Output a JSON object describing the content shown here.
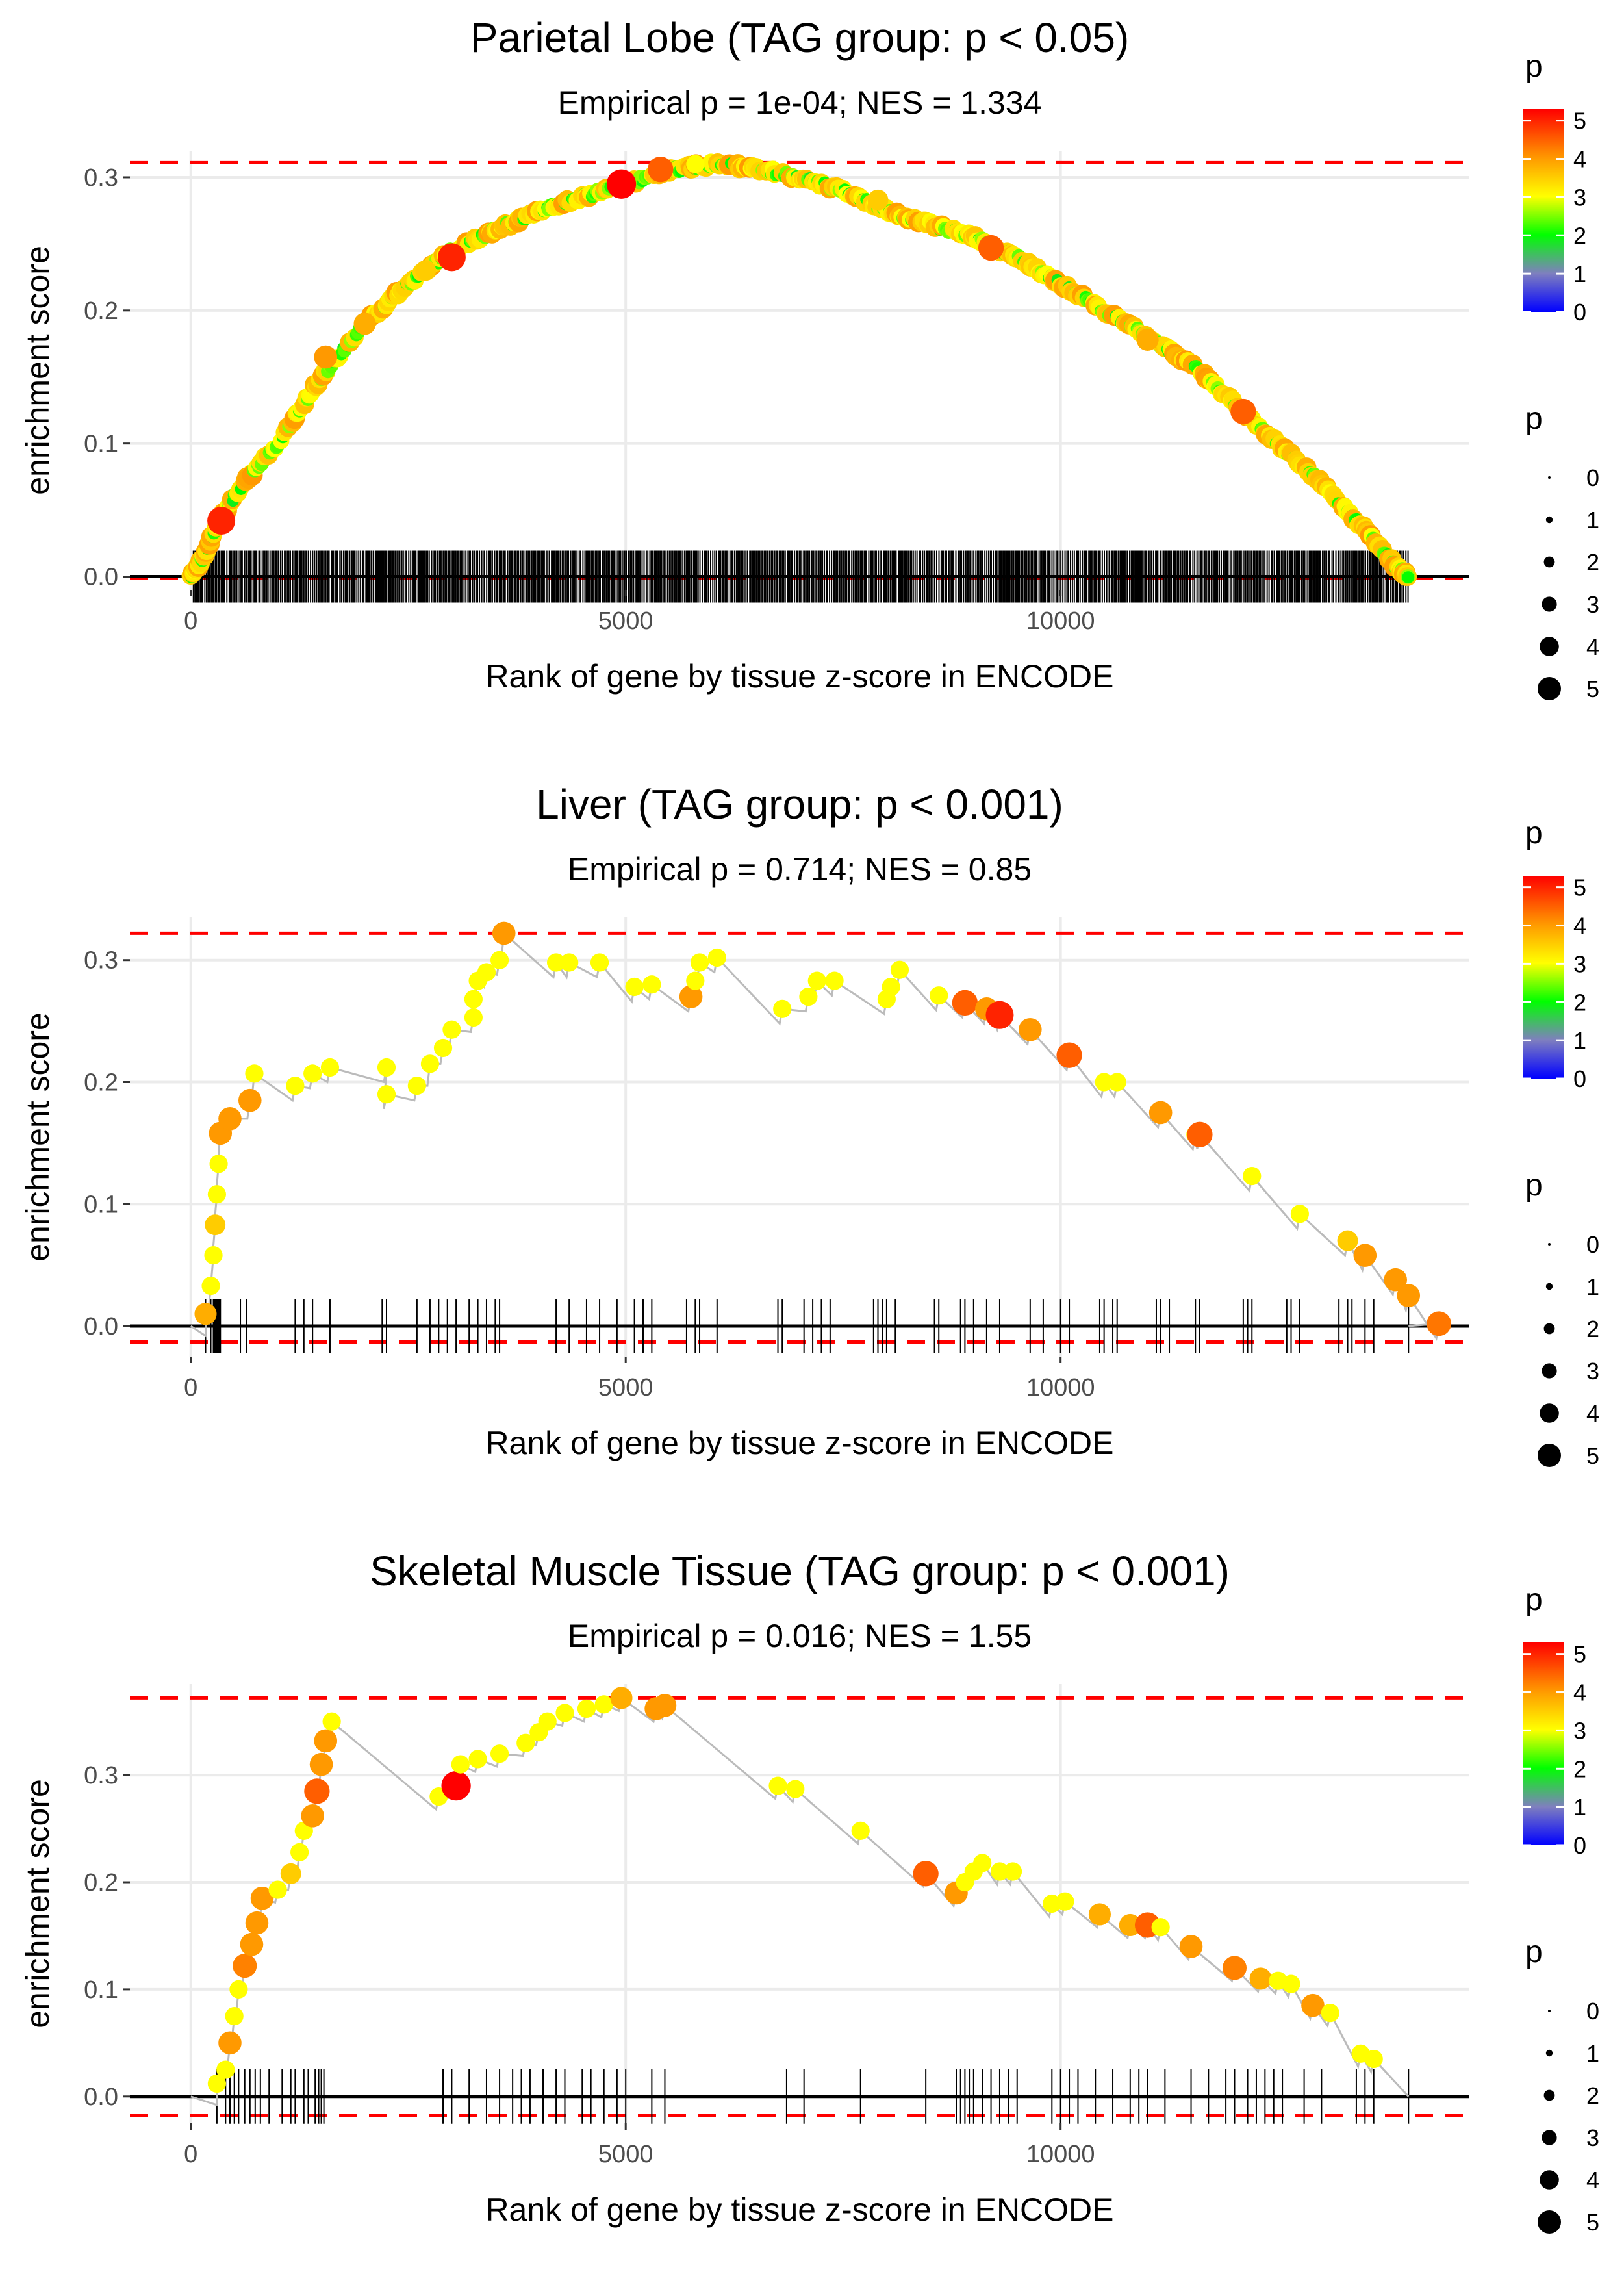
{
  "xlabel": "Rank of gene by tissue z-score in ENCODE",
  "ylabel": "enrichment score",
  "legend": {
    "color_title": "p",
    "size_title": "p",
    "color_ticks": [
      "5",
      "4",
      "3",
      "2",
      "1",
      "0"
    ],
    "size_ticks": [
      "0",
      "1",
      "2",
      "3",
      "4",
      "5"
    ],
    "color_scale": [
      "#0000ff",
      "#7f7fbf",
      "#00ff00",
      "#ffff00",
      "#ff9900",
      "#ff0000"
    ]
  },
  "colors": {
    "dashed": "#ff0000",
    "line": "#bbbbbb",
    "grid": "#ebebeb",
    "ticks": "#000000"
  },
  "chart_data": [
    {
      "type": "line",
      "title": "Parietal Lobe (TAG group: p < 0.05)",
      "subtitle": "Empirical p = 1e-04; NES = 1.334",
      "xlim": [
        -700,
        14700
      ],
      "ylim": [
        -0.01,
        0.32
      ],
      "xticks": [
        "0",
        "5000",
        "10000"
      ],
      "yticks": [
        "0.0",
        "0.1",
        "0.2",
        "0.3"
      ],
      "xtick_values": [
        0,
        5000,
        10000
      ],
      "ytick_values": [
        0,
        0.1,
        0.2,
        0.3
      ],
      "es_max": 0.311,
      "es_min": -0.001,
      "mode": "dense",
      "curve": [
        [
          0,
          0
        ],
        [
          150,
          0.015
        ],
        [
          300,
          0.04
        ],
        [
          600,
          0.07
        ],
        [
          1000,
          0.1
        ],
        [
          1500,
          0.15
        ],
        [
          2000,
          0.19
        ],
        [
          2500,
          0.22
        ],
        [
          3000,
          0.245
        ],
        [
          3500,
          0.26
        ],
        [
          4000,
          0.275
        ],
        [
          4500,
          0.285
        ],
        [
          5000,
          0.295
        ],
        [
          5500,
          0.305
        ],
        [
          6000,
          0.31
        ],
        [
          6500,
          0.307
        ],
        [
          7000,
          0.3
        ],
        [
          7500,
          0.29
        ],
        [
          8000,
          0.275
        ],
        [
          8500,
          0.265
        ],
        [
          9000,
          0.255
        ],
        [
          9500,
          0.24
        ],
        [
          10000,
          0.22
        ],
        [
          10500,
          0.2
        ],
        [
          11000,
          0.18
        ],
        [
          11500,
          0.16
        ],
        [
          12000,
          0.13
        ],
        [
          12500,
          0.1
        ],
        [
          13000,
          0.07
        ],
        [
          13500,
          0.035
        ],
        [
          13900,
          0.005
        ],
        [
          14000,
          0
        ]
      ],
      "highlights": [
        [
          350,
          0.042,
          5
        ],
        [
          1550,
          0.165,
          4
        ],
        [
          3000,
          0.24,
          5
        ],
        [
          4950,
          0.295,
          5.3
        ],
        [
          5400,
          0.306,
          4.5
        ],
        [
          9200,
          0.247,
          4.5
        ],
        [
          12100,
          0.124,
          4.5
        ],
        [
          5800,
          0.31,
          3
        ],
        [
          2700,
          0.23,
          3.5
        ],
        [
          7900,
          0.283,
          3.5
        ],
        [
          11000,
          0.178,
          3.8
        ],
        [
          2000,
          0.19,
          3.8
        ]
      ],
      "hits_dense": true,
      "hits": [],
      "points": []
    },
    {
      "type": "line",
      "title": "Liver (TAG group: p < 0.001)",
      "subtitle": "Empirical p = 0.714; NES = 0.85",
      "xlim": [
        -700,
        14700
      ],
      "ylim": [
        -0.025,
        0.335
      ],
      "xticks": [
        "0",
        "5000",
        "10000"
      ],
      "yticks": [
        "0.0",
        "0.1",
        "0.2",
        "0.3"
      ],
      "xtick_values": [
        0,
        5000,
        10000
      ],
      "ytick_values": [
        0,
        0.1,
        0.2,
        0.3
      ],
      "es_max": 0.322,
      "es_min": -0.013,
      "mode": "sparse",
      "hits_dense": false,
      "hits": [
        170,
        230,
        260,
        270,
        280,
        290,
        300,
        310,
        320,
        330,
        340,
        570,
        640,
        1200,
        1300,
        1400,
        1600,
        2200,
        2250,
        2600,
        2750,
        2850,
        2950,
        3050,
        3200,
        3300,
        3400,
        3500,
        3550,
        4200,
        4350,
        4550,
        4700,
        4900,
        5100,
        5200,
        5300,
        5700,
        5800,
        5850,
        6050,
        6750,
        6800,
        7050,
        7150,
        7250,
        7350,
        7850,
        7900,
        7950,
        8000,
        8100,
        8550,
        8600,
        8850,
        8900,
        9000,
        9150,
        9300,
        9650,
        9800,
        10000,
        10100,
        10450,
        10500,
        10600,
        10650,
        11100,
        11150,
        11250,
        11550,
        11600,
        12100,
        12150,
        12200,
        12600,
        12650,
        12750,
        13200,
        13300,
        13350,
        13500,
        13600,
        14000
      ],
      "points": [
        [
          170,
          0.01,
          3.8
        ],
        [
          230,
          0.033,
          3
        ],
        [
          260,
          0.058,
          3
        ],
        [
          280,
          0.083,
          3.5
        ],
        [
          300,
          0.108,
          3
        ],
        [
          320,
          0.133,
          3
        ],
        [
          340,
          0.158,
          4
        ],
        [
          450,
          0.17,
          4
        ],
        [
          680,
          0.185,
          4
        ],
        [
          730,
          0.207,
          3
        ],
        [
          1200,
          0.197,
          3
        ],
        [
          1400,
          0.207,
          3
        ],
        [
          1600,
          0.212,
          3
        ],
        [
          2250,
          0.212,
          3
        ],
        [
          2250,
          0.19,
          3
        ],
        [
          2600,
          0.197,
          3
        ],
        [
          2750,
          0.215,
          3
        ],
        [
          2900,
          0.228,
          3
        ],
        [
          3000,
          0.243,
          3
        ],
        [
          3250,
          0.253,
          3
        ],
        [
          3250,
          0.268,
          3
        ],
        [
          3300,
          0.283,
          3
        ],
        [
          3400,
          0.29,
          3
        ],
        [
          3550,
          0.3,
          3
        ],
        [
          3600,
          0.322,
          4
        ],
        [
          4200,
          0.298,
          3
        ],
        [
          4350,
          0.298,
          3
        ],
        [
          4700,
          0.298,
          3
        ],
        [
          5100,
          0.278,
          3
        ],
        [
          5300,
          0.28,
          3
        ],
        [
          5750,
          0.27,
          4
        ],
        [
          5800,
          0.283,
          3
        ],
        [
          5850,
          0.298,
          3
        ],
        [
          6050,
          0.302,
          3
        ],
        [
          6800,
          0.26,
          3
        ],
        [
          7100,
          0.27,
          3
        ],
        [
          7200,
          0.283,
          3
        ],
        [
          7400,
          0.283,
          3
        ],
        [
          8000,
          0.268,
          3
        ],
        [
          8050,
          0.278,
          3
        ],
        [
          8150,
          0.292,
          3
        ],
        [
          8600,
          0.271,
          3
        ],
        [
          8900,
          0.265,
          4.5
        ],
        [
          9150,
          0.26,
          4
        ],
        [
          9300,
          0.255,
          5
        ],
        [
          9650,
          0.243,
          4
        ],
        [
          10100,
          0.222,
          4.5
        ],
        [
          10500,
          0.2,
          3
        ],
        [
          10650,
          0.2,
          3
        ],
        [
          11150,
          0.175,
          4
        ],
        [
          11550,
          0.157,
          3
        ],
        [
          11600,
          0.157,
          4.5
        ],
        [
          12200,
          0.123,
          3
        ],
        [
          12750,
          0.092,
          3
        ],
        [
          13300,
          0.07,
          3.5
        ],
        [
          13500,
          0.058,
          4
        ],
        [
          13850,
          0.038,
          4
        ],
        [
          14000,
          0.025,
          4
        ],
        [
          14350,
          0.002,
          4.3
        ]
      ],
      "curve": [
        [
          0,
          0
        ],
        [
          170,
          -0.008
        ]
      ]
    },
    {
      "type": "line",
      "title": "Skeletal Muscle Tissue (TAG group: p < 0.001)",
      "subtitle": "Empirical p = 0.016; NES = 1.55",
      "xlim": [
        -700,
        14700
      ],
      "ylim": [
        -0.025,
        0.385
      ],
      "xticks": [
        "0",
        "5000",
        "10000"
      ],
      "yticks": [
        "0.0",
        "0.1",
        "0.2",
        "0.3"
      ],
      "xtick_values": [
        0,
        5000,
        10000
      ],
      "ytick_values": [
        0,
        0.1,
        0.2,
        0.3
      ],
      "es_max": 0.372,
      "es_min": -0.018,
      "mode": "sparse",
      "hits_dense": false,
      "hits": [
        300,
        400,
        450,
        500,
        550,
        620,
        680,
        740,
        800,
        900,
        1050,
        1150,
        1200,
        1300,
        1350,
        1430,
        1470,
        1500,
        1530,
        2900,
        3000,
        3200,
        3400,
        3550,
        3700,
        3800,
        3900,
        4050,
        4200,
        4300,
        4500,
        4600,
        4750,
        4900,
        5000,
        5300,
        5450,
        6850,
        7050,
        7700,
        8450,
        8800,
        8850,
        8900,
        8950,
        9000,
        9100,
        9200,
        9300,
        9400,
        9500,
        9900,
        10000,
        10100,
        10200,
        10400,
        10600,
        10800,
        10900,
        11000,
        11200,
        11500,
        11700,
        11900,
        12000,
        12150,
        12250,
        12350,
        12450,
        12550,
        12800,
        13000,
        13400,
        13500,
        13600,
        14000
      ],
      "points": [
        [
          300,
          0.012,
          3
        ],
        [
          400,
          0.025,
          3
        ],
        [
          450,
          0.05,
          4
        ],
        [
          500,
          0.075,
          3
        ],
        [
          550,
          0.1,
          3
        ],
        [
          620,
          0.122,
          4.2
        ],
        [
          700,
          0.142,
          4
        ],
        [
          760,
          0.162,
          4
        ],
        [
          820,
          0.185,
          4
        ],
        [
          1000,
          0.193,
          3
        ],
        [
          1150,
          0.208,
          3.5
        ],
        [
          1250,
          0.228,
          3
        ],
        [
          1300,
          0.248,
          3
        ],
        [
          1400,
          0.262,
          4
        ],
        [
          1450,
          0.285,
          4.5
        ],
        [
          1500,
          0.31,
          4
        ],
        [
          1550,
          0.332,
          4
        ],
        [
          1620,
          0.35,
          3
        ],
        [
          2850,
          0.28,
          3
        ],
        [
          3050,
          0.29,
          5.3
        ],
        [
          3100,
          0.31,
          3
        ],
        [
          3300,
          0.315,
          3
        ],
        [
          3550,
          0.32,
          3
        ],
        [
          3850,
          0.33,
          3
        ],
        [
          4000,
          0.34,
          3
        ],
        [
          4100,
          0.35,
          3
        ],
        [
          4300,
          0.358,
          3
        ],
        [
          4550,
          0.362,
          3
        ],
        [
          4750,
          0.366,
          3
        ],
        [
          4950,
          0.372,
          3.8
        ],
        [
          5350,
          0.362,
          4
        ],
        [
          5450,
          0.365,
          4
        ],
        [
          6750,
          0.29,
          3
        ],
        [
          6950,
          0.287,
          3
        ],
        [
          7700,
          0.248,
          3
        ],
        [
          8450,
          0.208,
          4.5
        ],
        [
          8800,
          0.19,
          4
        ],
        [
          8900,
          0.2,
          3
        ],
        [
          9000,
          0.21,
          3
        ],
        [
          9100,
          0.218,
          3
        ],
        [
          9300,
          0.21,
          3
        ],
        [
          9450,
          0.21,
          3
        ],
        [
          9900,
          0.18,
          3
        ],
        [
          10050,
          0.182,
          3
        ],
        [
          10450,
          0.17,
          3.8
        ],
        [
          10800,
          0.16,
          3.8
        ],
        [
          11000,
          0.16,
          4.5
        ],
        [
          11150,
          0.158,
          3
        ],
        [
          11500,
          0.14,
          4
        ],
        [
          12000,
          0.12,
          4.2
        ],
        [
          12300,
          0.11,
          3.8
        ],
        [
          12500,
          0.108,
          3
        ],
        [
          12650,
          0.105,
          3
        ],
        [
          12900,
          0.085,
          4
        ],
        [
          13100,
          0.078,
          3
        ],
        [
          13450,
          0.04,
          3
        ],
        [
          13600,
          0.035,
          3
        ]
      ],
      "curve": [
        [
          0,
          0
        ],
        [
          300,
          -0.008
        ]
      ]
    }
  ]
}
